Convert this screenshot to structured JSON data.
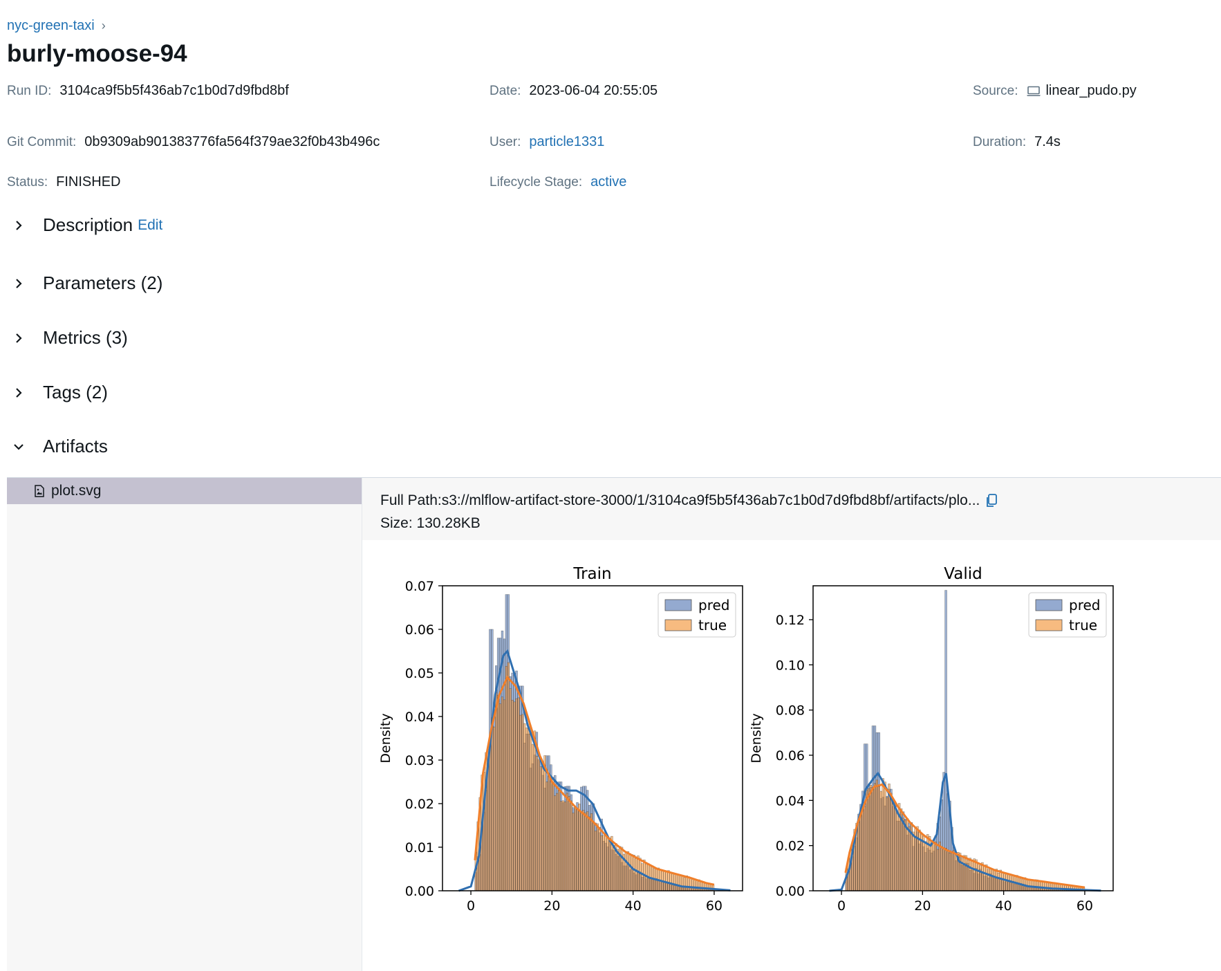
{
  "breadcrumb": {
    "experiment": "nyc-green-taxi",
    "sep": "›"
  },
  "run": {
    "title": "burly-moose-94",
    "run_id_label": "Run ID:",
    "run_id": "3104ca9f5b5f436ab7c1b0d7d9fbd8bf",
    "date_label": "Date:",
    "date": "2023-06-04 20:55:05",
    "source_label": "Source:",
    "source": "linear_pudo.py",
    "git_label": "Git Commit:",
    "git": "0b9309ab901383776fa564f379ae32f0b43b496c",
    "user_label": "User:",
    "user": "particle1331",
    "duration_label": "Duration:",
    "duration": "7.4s",
    "status_label": "Status:",
    "status": "FINISHED",
    "lifecycle_label": "Lifecycle Stage:",
    "lifecycle": "active"
  },
  "sections": {
    "description": "Description",
    "edit": "Edit",
    "parameters": "Parameters (2)",
    "metrics": "Metrics (3)",
    "tags": "Tags (2)",
    "artifacts": "Artifacts"
  },
  "artifacts": {
    "file": "plot.svg",
    "full_path_label": "Full Path:",
    "full_path": "s3://mlflow-artifact-store-3000/1/3104ca9f5b5f436ab7c1b0d7d9fbd8bf/artifacts/plo...",
    "size_label": "Size:",
    "size": "130.28KB"
  },
  "colors": {
    "pred": "#4c72b0",
    "true": "#f28e2b",
    "link": "#2272b4"
  },
  "chart_data": [
    {
      "type": "bar",
      "title": "Train",
      "xlabel": "",
      "ylabel": "Density",
      "xlim": [
        -7,
        67
      ],
      "ylim": [
        0,
        0.07
      ],
      "xticks": [
        0,
        20,
        40,
        60
      ],
      "yticks": [
        "0.00",
        "0.01",
        "0.02",
        "0.03",
        "0.04",
        "0.05",
        "0.06",
        "0.07"
      ],
      "legend": "top-right",
      "series": [
        {
          "name": "pred",
          "kde_points": [
            [
              -3,
              0
            ],
            [
              0,
              0.001
            ],
            [
              2,
              0.008
            ],
            [
              4,
              0.027
            ],
            [
              6,
              0.045
            ],
            [
              8,
              0.054
            ],
            [
              9,
              0.055
            ],
            [
              10,
              0.052
            ],
            [
              12,
              0.046
            ],
            [
              14,
              0.038
            ],
            [
              16,
              0.033
            ],
            [
              18,
              0.028
            ],
            [
              20,
              0.026
            ],
            [
              22,
              0.024
            ],
            [
              24,
              0.023
            ],
            [
              26,
              0.023
            ],
            [
              28,
              0.022
            ],
            [
              30,
              0.02
            ],
            [
              32,
              0.016
            ],
            [
              34,
              0.012
            ],
            [
              36,
              0.009
            ],
            [
              38,
              0.007
            ],
            [
              40,
              0.005
            ],
            [
              44,
              0.003
            ],
            [
              48,
              0.002
            ],
            [
              52,
              0.001
            ],
            [
              56,
              0.0007
            ],
            [
              60,
              0.0004
            ],
            [
              64,
              0.0001
            ]
          ]
        },
        {
          "name": "true",
          "kde_points": [
            [
              1,
              0.007
            ],
            [
              2,
              0.017
            ],
            [
              3,
              0.027
            ],
            [
              5,
              0.037
            ],
            [
              7,
              0.045
            ],
            [
              9,
              0.049
            ],
            [
              11,
              0.047
            ],
            [
              13,
              0.043
            ],
            [
              15,
              0.037
            ],
            [
              17,
              0.031
            ],
            [
              20,
              0.025
            ],
            [
              23,
              0.022
            ],
            [
              26,
              0.019
            ],
            [
              30,
              0.016
            ],
            [
              34,
              0.012
            ],
            [
              38,
              0.009
            ],
            [
              42,
              0.007
            ],
            [
              46,
              0.005
            ],
            [
              50,
              0.004
            ],
            [
              54,
              0.003
            ],
            [
              58,
              0.0018
            ],
            [
              60,
              0.0014
            ]
          ]
        }
      ],
      "hist": {
        "bin_start": 1,
        "bin_width": 0.5,
        "bins": 118,
        "pred_peaks": [
          [
            5,
            0.06
          ],
          [
            7,
            0.058
          ],
          [
            9,
            0.068
          ],
          [
            10.5,
            0.05
          ],
          [
            12.5,
            0.047
          ],
          [
            14,
            0.036
          ],
          [
            17,
            0.03
          ],
          [
            19,
            0.031
          ],
          [
            22,
            0.025
          ],
          [
            24,
            0.024
          ],
          [
            28,
            0.024
          ],
          [
            30,
            0.02
          ]
        ]
      }
    },
    {
      "type": "bar",
      "title": "Valid",
      "xlabel": "",
      "ylabel": "Density",
      "xlim": [
        -7,
        67
      ],
      "ylim": [
        0,
        0.135
      ],
      "xticks": [
        0,
        20,
        40,
        60
      ],
      "yticks": [
        "0.00",
        "0.02",
        "0.04",
        "0.06",
        "0.08",
        "0.10",
        "0.12"
      ],
      "legend": "top-right",
      "series": [
        {
          "name": "pred",
          "kde_points": [
            [
              -3,
              0
            ],
            [
              0,
              0.0005
            ],
            [
              2,
              0.01
            ],
            [
              4,
              0.03
            ],
            [
              6,
              0.045
            ],
            [
              8,
              0.05
            ],
            [
              9,
              0.052
            ],
            [
              10,
              0.049
            ],
            [
              12,
              0.042
            ],
            [
              14,
              0.034
            ],
            [
              16,
              0.028
            ],
            [
              18,
              0.024
            ],
            [
              20,
              0.022
            ],
            [
              22,
              0.02
            ],
            [
              23.5,
              0.025
            ],
            [
              25,
              0.048
            ],
            [
              25.8,
              0.052
            ],
            [
              26.5,
              0.04
            ],
            [
              27.5,
              0.021
            ],
            [
              29,
              0.013
            ],
            [
              32,
              0.01
            ],
            [
              35,
              0.008
            ],
            [
              38,
              0.006
            ],
            [
              42,
              0.004
            ],
            [
              46,
              0.002
            ],
            [
              52,
              0.001
            ],
            [
              58,
              0.0005
            ],
            [
              64,
              0.0001
            ]
          ]
        },
        {
          "name": "true",
          "kde_points": [
            [
              1,
              0.008
            ],
            [
              2,
              0.017
            ],
            [
              4,
              0.03
            ],
            [
              6,
              0.04
            ],
            [
              8,
              0.046
            ],
            [
              10,
              0.047
            ],
            [
              12,
              0.043
            ],
            [
              14,
              0.037
            ],
            [
              17,
              0.03
            ],
            [
              20,
              0.025
            ],
            [
              23,
              0.021
            ],
            [
              26,
              0.018
            ],
            [
              30,
              0.015
            ],
            [
              34,
              0.012
            ],
            [
              38,
              0.009
            ],
            [
              42,
              0.007
            ],
            [
              46,
              0.005
            ],
            [
              50,
              0.004
            ],
            [
              54,
              0.003
            ],
            [
              58,
              0.002
            ],
            [
              60,
              0.0015
            ]
          ]
        }
      ],
      "hist": {
        "bin_start": 1,
        "bin_width": 0.5,
        "bins": 118,
        "pred_peaks": [
          [
            6,
            0.065
          ],
          [
            8,
            0.073
          ],
          [
            9,
            0.07
          ],
          [
            12,
            0.045
          ],
          [
            15,
            0.035
          ],
          [
            17,
            0.03
          ],
          [
            25.8,
            0.133
          ],
          [
            29,
            0.015
          ]
        ]
      }
    }
  ]
}
